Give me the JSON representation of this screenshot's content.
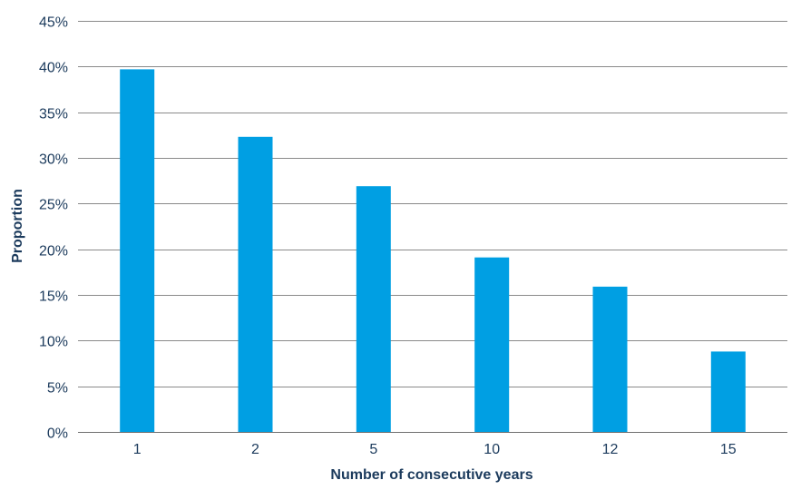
{
  "chart_data": {
    "type": "bar",
    "title": "",
    "xlabel": "Number of consecutive years",
    "ylabel": "Proportion",
    "categories": [
      "1",
      "2",
      "5",
      "10",
      "12",
      "15"
    ],
    "values": [
      39.7,
      32.3,
      26.9,
      19.1,
      15.9,
      8.8
    ],
    "y_unit": "%",
    "ylim": [
      0,
      45
    ],
    "y_ticks": [
      0,
      5,
      10,
      15,
      20,
      25,
      30,
      35,
      40,
      45
    ],
    "y_tick_labels": [
      "0%",
      "5%",
      "10%",
      "15%",
      "20%",
      "25%",
      "30%",
      "35%",
      "40%",
      "45%"
    ],
    "grid": true,
    "legend": "none",
    "bar_color": "#009fe3",
    "text_color": "#1b3a5c",
    "grid_color": "#8a8a8a"
  }
}
